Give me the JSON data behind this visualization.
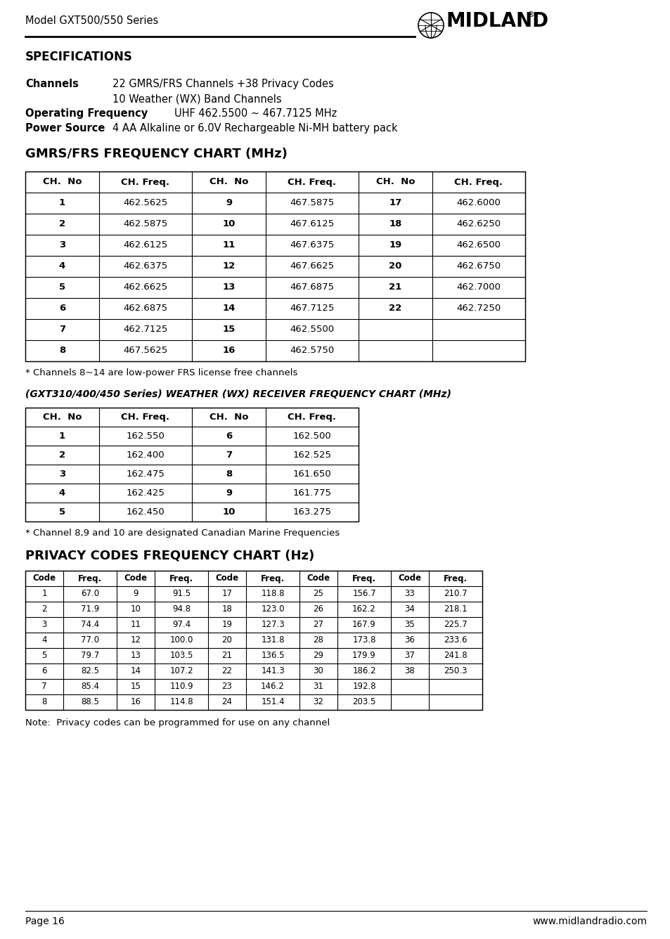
{
  "page_title_left": "Model GXT500/550 Series",
  "specs_title": "SPECIFICATIONS",
  "channels_label": "Channels",
  "channels_line1": "22 GMRS/FRS Channels +38 Privacy Codes",
  "channels_line2": "10 Weather (WX) Band Channels",
  "op_freq_label": "Operating Frequency",
  "op_freq_value": "UHF 462.5500 ~ 467.7125 MHz",
  "power_label": "Power Source",
  "power_value": "4 AA Alkaline or 6.0V Rechargeable Ni-MH battery pack",
  "gmrs_title": "GMRS/FRS FREQUENCY CHART (MHz)",
  "gmrs_headers": [
    "CH.  No",
    "CH. Freq.",
    "CH.  No",
    "CH. Freq.",
    "CH.  No",
    "CH. Freq."
  ],
  "gmrs_data": [
    [
      "1",
      "462.5625",
      "9",
      "467.5875",
      "17",
      "462.6000"
    ],
    [
      "2",
      "462.5875",
      "10",
      "467.6125",
      "18",
      "462.6250"
    ],
    [
      "3",
      "462.6125",
      "11",
      "467.6375",
      "19",
      "462.6500"
    ],
    [
      "4",
      "462.6375",
      "12",
      "467.6625",
      "20",
      "462.6750"
    ],
    [
      "5",
      "462.6625",
      "13",
      "467.6875",
      "21",
      "462.7000"
    ],
    [
      "6",
      "462.6875",
      "14",
      "467.7125",
      "22",
      "462.7250"
    ],
    [
      "7",
      "462.7125",
      "15",
      "462.5500",
      "",
      ""
    ],
    [
      "8",
      "467.5625",
      "16",
      "462.5750",
      "",
      ""
    ]
  ],
  "gmrs_note": "* Channels 8~14 are low-power FRS license free channels",
  "wx_title": "(GXT310/400/450 Series) WEATHER (WX) RECEIVER FREQUENCY CHART (MHz)",
  "wx_headers": [
    "CH.  No",
    "CH. Freq.",
    "CH.  No",
    "CH. Freq."
  ],
  "wx_data": [
    [
      "1",
      "162.550",
      "6",
      "162.500"
    ],
    [
      "2",
      "162.400",
      "7",
      "162.525"
    ],
    [
      "3",
      "162.475",
      "8",
      "161.650"
    ],
    [
      "4",
      "162.425",
      "9",
      "161.775"
    ],
    [
      "5",
      "162.450",
      "10",
      "163.275"
    ]
  ],
  "wx_note": "* Channel 8,9 and 10 are designated Canadian Marine Frequencies",
  "privacy_title": "PRIVACY CODES FREQUENCY CHART (Hz)",
  "privacy_headers": [
    "Code",
    "Freq.",
    "Code",
    "Freq.",
    "Code",
    "Freq.",
    "Code",
    "Freq.",
    "Code",
    "Freq."
  ],
  "privacy_data": [
    [
      "1",
      "67.0",
      "9",
      "91.5",
      "17",
      "118.8",
      "25",
      "156.7",
      "33",
      "210.7"
    ],
    [
      "2",
      "71.9",
      "10",
      "94.8",
      "18",
      "123.0",
      "26",
      "162.2",
      "34",
      "218.1"
    ],
    [
      "3",
      "74.4",
      "11",
      "97.4",
      "19",
      "127.3",
      "27",
      "167.9",
      "35",
      "225.7"
    ],
    [
      "4",
      "77.0",
      "12",
      "100.0",
      "20",
      "131.8",
      "28",
      "173.8",
      "36",
      "233.6"
    ],
    [
      "5",
      "79.7",
      "13",
      "103.5",
      "21",
      "136.5",
      "29",
      "179.9",
      "37",
      "241.8"
    ],
    [
      "6",
      "82.5",
      "14",
      "107.2",
      "22",
      "141.3",
      "30",
      "186.2",
      "38",
      "250.3"
    ],
    [
      "7",
      "85.4",
      "15",
      "110.9",
      "23",
      "146.2",
      "31",
      "192.8",
      "",
      ""
    ],
    [
      "8",
      "88.5",
      "16",
      "114.8",
      "24",
      "151.4",
      "32",
      "203.5",
      "",
      ""
    ]
  ],
  "privacy_note": "Note:  Privacy codes can be programmed for use on any channel",
  "footer_left": "Page 16",
  "footer_right": "www.midlandradio.com",
  "bg_color": "#ffffff"
}
